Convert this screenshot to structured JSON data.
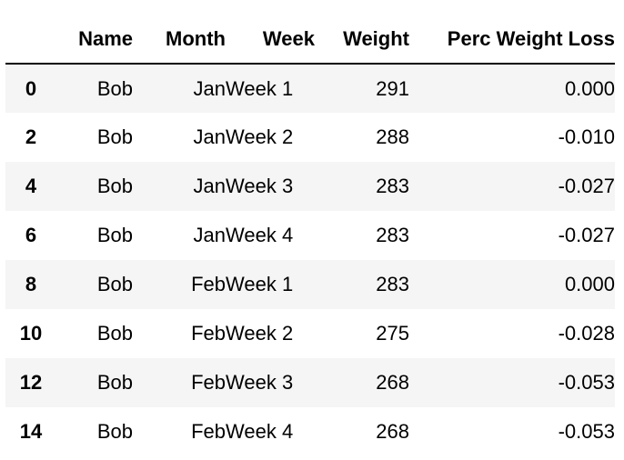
{
  "table": {
    "columns": [
      "",
      "Name",
      "Month",
      "Week",
      "Weight",
      "Perc Weight Loss"
    ],
    "rows": [
      {
        "index": "0",
        "name": "Bob",
        "month": "Jan",
        "week": "Week 1",
        "weight": "291",
        "perc": "0.000"
      },
      {
        "index": "2",
        "name": "Bob",
        "month": "Jan",
        "week": "Week 2",
        "weight": "288",
        "perc": "-0.010"
      },
      {
        "index": "4",
        "name": "Bob",
        "month": "Jan",
        "week": "Week 3",
        "weight": "283",
        "perc": "-0.027"
      },
      {
        "index": "6",
        "name": "Bob",
        "month": "Jan",
        "week": "Week 4",
        "weight": "283",
        "perc": "-0.027"
      },
      {
        "index": "8",
        "name": "Bob",
        "month": "Feb",
        "week": "Week 1",
        "weight": "283",
        "perc": "0.000"
      },
      {
        "index": "10",
        "name": "Bob",
        "month": "Feb",
        "week": "Week 2",
        "weight": "275",
        "perc": "-0.028"
      },
      {
        "index": "12",
        "name": "Bob",
        "month": "Feb",
        "week": "Week 3",
        "weight": "268",
        "perc": "-0.053"
      },
      {
        "index": "14",
        "name": "Bob",
        "month": "Feb",
        "week": "Week 4",
        "weight": "268",
        "perc": "-0.053"
      }
    ]
  },
  "colors": {
    "stripe": "#f5f5f5",
    "header_rule": "#000000",
    "text": "#000000"
  }
}
